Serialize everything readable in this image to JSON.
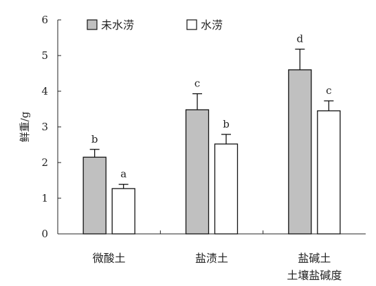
{
  "chart_data": {
    "type": "bar",
    "categories": [
      "微酸土",
      "盐渍土",
      "盐碱土"
    ],
    "series": [
      {
        "name": "未水涝",
        "color": "#c0c0c0",
        "values": [
          2.15,
          3.48,
          4.6
        ],
        "errors": [
          0.22,
          0.45,
          0.58
        ],
        "letters": [
          "b",
          "c",
          "d"
        ]
      },
      {
        "name": "水涝",
        "color": "#ffffff",
        "values": [
          1.27,
          2.52,
          3.45
        ],
        "errors": [
          0.12,
          0.27,
          0.28
        ],
        "letters": [
          "a",
          "b",
          "c"
        ]
      }
    ],
    "xlabel": "土壤盐碱度",
    "ylabel": "鲜重/g",
    "ylim": [
      0,
      6
    ],
    "yticks": [
      0,
      1,
      2,
      3,
      4,
      5,
      6
    ],
    "legend_position": "top-left",
    "grid": false
  }
}
